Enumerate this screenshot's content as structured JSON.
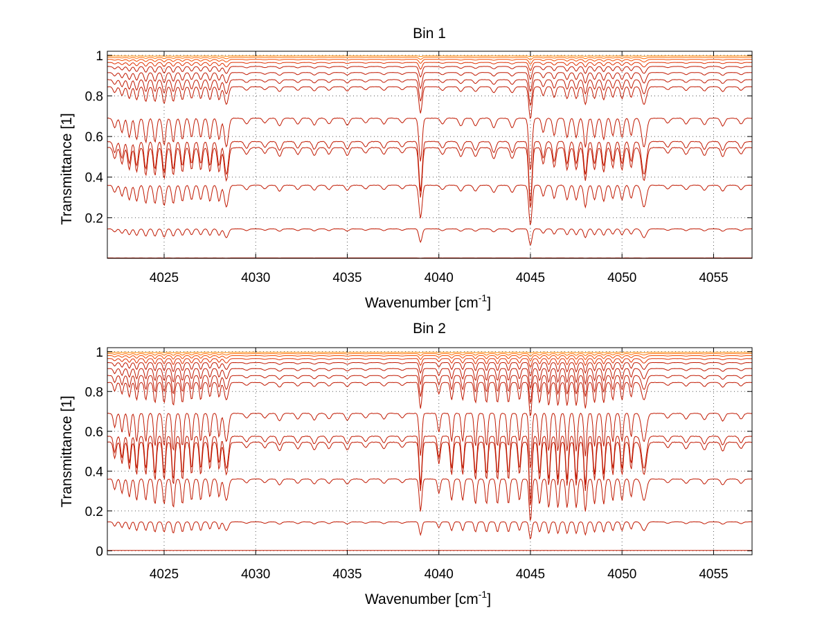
{
  "figure": {
    "background": "#ffffff"
  },
  "chart_data": [
    {
      "type": "line",
      "title": "Bin 1",
      "xlabel": "Wavenumber [cm",
      "xlabel_superscript": "-1",
      "xlabel_close": "]",
      "ylabel": "Transmittance [1]",
      "xlim": [
        4021.9,
        4057.1
      ],
      "ylim": [
        0,
        1.02
      ],
      "grid": true,
      "xticks": [
        4025,
        4030,
        4035,
        4040,
        4045,
        4050,
        4055
      ],
      "xtick_labels": [
        "4025",
        "4030",
        "4035",
        "4040",
        "4045",
        "4050",
        "4055"
      ],
      "yticks": [
        0.2,
        0.4,
        0.6,
        0.8,
        1
      ],
      "ytick_labels": [
        "0.2",
        "0.4",
        "0.6",
        "0.8",
        "1"
      ],
      "line_color": "#c01800",
      "baselines": [
        0.997,
        0.99,
        0.98,
        0.965,
        0.945,
        0.915,
        0.88,
        0.845,
        0.69,
        0.575,
        0.545,
        0.36,
        0.145,
        0.002
      ],
      "absorption_lines": [
        {
          "x": 4022.3,
          "depth": 0.1,
          "width": 0.12
        },
        {
          "x": 4022.7,
          "depth": 0.15,
          "width": 0.12
        },
        {
          "x": 4023.1,
          "depth": 0.2,
          "width": 0.12
        },
        {
          "x": 4023.5,
          "depth": 0.22,
          "width": 0.12
        },
        {
          "x": 4024.0,
          "depth": 0.25,
          "width": 0.12
        },
        {
          "x": 4024.5,
          "depth": 0.25,
          "width": 0.12
        },
        {
          "x": 4025.0,
          "depth": 0.28,
          "width": 0.12
        },
        {
          "x": 4025.5,
          "depth": 0.25,
          "width": 0.12
        },
        {
          "x": 4026.0,
          "depth": 0.22,
          "width": 0.12
        },
        {
          "x": 4026.5,
          "depth": 0.2,
          "width": 0.12
        },
        {
          "x": 4027.0,
          "depth": 0.2,
          "width": 0.12
        },
        {
          "x": 4027.5,
          "depth": 0.22,
          "width": 0.12
        },
        {
          "x": 4028.0,
          "depth": 0.22,
          "width": 0.12
        },
        {
          "x": 4028.4,
          "depth": 0.3,
          "width": 0.15
        },
        {
          "x": 4029.5,
          "depth": 0.06,
          "width": 0.15
        },
        {
          "x": 4030.5,
          "depth": 0.05,
          "width": 0.15
        },
        {
          "x": 4031.3,
          "depth": 0.08,
          "width": 0.15
        },
        {
          "x": 4032.3,
          "depth": 0.06,
          "width": 0.15
        },
        {
          "x": 4033.2,
          "depth": 0.07,
          "width": 0.15
        },
        {
          "x": 4034.0,
          "depth": 0.06,
          "width": 0.15
        },
        {
          "x": 4035.0,
          "depth": 0.07,
          "width": 0.15
        },
        {
          "x": 4036.0,
          "depth": 0.05,
          "width": 0.15
        },
        {
          "x": 4037.0,
          "depth": 0.06,
          "width": 0.15
        },
        {
          "x": 4038.0,
          "depth": 0.05,
          "width": 0.15
        },
        {
          "x": 4039.0,
          "depth": 0.45,
          "width": 0.12
        },
        {
          "x": 4040.2,
          "depth": 0.06,
          "width": 0.15
        },
        {
          "x": 4041.2,
          "depth": 0.08,
          "width": 0.15
        },
        {
          "x": 4042.0,
          "depth": 0.08,
          "width": 0.15
        },
        {
          "x": 4043.0,
          "depth": 0.1,
          "width": 0.15
        },
        {
          "x": 4044.0,
          "depth": 0.1,
          "width": 0.15
        },
        {
          "x": 4045.0,
          "depth": 0.55,
          "width": 0.12
        },
        {
          "x": 4045.7,
          "depth": 0.15,
          "width": 0.12
        },
        {
          "x": 4046.3,
          "depth": 0.18,
          "width": 0.12
        },
        {
          "x": 4047.0,
          "depth": 0.2,
          "width": 0.12
        },
        {
          "x": 4047.5,
          "depth": 0.2,
          "width": 0.12
        },
        {
          "x": 4048.0,
          "depth": 0.3,
          "width": 0.12
        },
        {
          "x": 4048.5,
          "depth": 0.2,
          "width": 0.12
        },
        {
          "x": 4049.0,
          "depth": 0.22,
          "width": 0.12
        },
        {
          "x": 4049.5,
          "depth": 0.18,
          "width": 0.12
        },
        {
          "x": 4050.0,
          "depth": 0.2,
          "width": 0.12
        },
        {
          "x": 4050.5,
          "depth": 0.18,
          "width": 0.12
        },
        {
          "x": 4051.2,
          "depth": 0.3,
          "width": 0.18
        },
        {
          "x": 4052.5,
          "depth": 0.05,
          "width": 0.15
        },
        {
          "x": 4053.5,
          "depth": 0.06,
          "width": 0.15
        },
        {
          "x": 4054.5,
          "depth": 0.07,
          "width": 0.15
        },
        {
          "x": 4055.5,
          "depth": 0.08,
          "width": 0.15
        },
        {
          "x": 4056.5,
          "depth": 0.06,
          "width": 0.15
        }
      ]
    },
    {
      "type": "line",
      "title": "Bin 2",
      "xlabel": "Wavenumber [cm",
      "xlabel_superscript": "-1",
      "xlabel_close": "]",
      "ylabel": "Transmittance [1]",
      "xlim": [
        4021.9,
        4057.1
      ],
      "ylim": [
        -0.02,
        1.02
      ],
      "grid": true,
      "xticks": [
        4025,
        4030,
        4035,
        4040,
        4045,
        4050,
        4055
      ],
      "xtick_labels": [
        "4025",
        "4030",
        "4035",
        "4040",
        "4045",
        "4050",
        "4055"
      ],
      "yticks": [
        0,
        0.2,
        0.4,
        0.6,
        0.8,
        1
      ],
      "ytick_labels": [
        "0",
        "0.2",
        "0.4",
        "0.6",
        "0.8",
        "1"
      ],
      "line_color": "#c01800",
      "baselines": [
        0.997,
        0.99,
        0.98,
        0.965,
        0.945,
        0.915,
        0.88,
        0.845,
        0.69,
        0.575,
        0.545,
        0.36,
        0.145,
        0.002
      ],
      "absorption_lines": [
        {
          "x": 4022.3,
          "depth": 0.15,
          "width": 0.1
        },
        {
          "x": 4022.7,
          "depth": 0.2,
          "width": 0.1
        },
        {
          "x": 4023.1,
          "depth": 0.25,
          "width": 0.1
        },
        {
          "x": 4023.5,
          "depth": 0.3,
          "width": 0.1
        },
        {
          "x": 4024.0,
          "depth": 0.3,
          "width": 0.1
        },
        {
          "x": 4024.5,
          "depth": 0.35,
          "width": 0.1
        },
        {
          "x": 4025.0,
          "depth": 0.35,
          "width": 0.1
        },
        {
          "x": 4025.5,
          "depth": 0.4,
          "width": 0.1
        },
        {
          "x": 4026.0,
          "depth": 0.35,
          "width": 0.1
        },
        {
          "x": 4026.5,
          "depth": 0.3,
          "width": 0.1
        },
        {
          "x": 4027.0,
          "depth": 0.3,
          "width": 0.1
        },
        {
          "x": 4027.5,
          "depth": 0.25,
          "width": 0.1
        },
        {
          "x": 4028.0,
          "depth": 0.25,
          "width": 0.1
        },
        {
          "x": 4028.4,
          "depth": 0.3,
          "width": 0.15
        },
        {
          "x": 4029.5,
          "depth": 0.05,
          "width": 0.15
        },
        {
          "x": 4030.5,
          "depth": 0.05,
          "width": 0.15
        },
        {
          "x": 4031.3,
          "depth": 0.08,
          "width": 0.15
        },
        {
          "x": 4032.3,
          "depth": 0.06,
          "width": 0.15
        },
        {
          "x": 4033.2,
          "depth": 0.07,
          "width": 0.15
        },
        {
          "x": 4034.0,
          "depth": 0.06,
          "width": 0.15
        },
        {
          "x": 4035.0,
          "depth": 0.07,
          "width": 0.15
        },
        {
          "x": 4036.0,
          "depth": 0.05,
          "width": 0.15
        },
        {
          "x": 4037.0,
          "depth": 0.06,
          "width": 0.15
        },
        {
          "x": 4038.0,
          "depth": 0.05,
          "width": 0.15
        },
        {
          "x": 4039.0,
          "depth": 0.45,
          "width": 0.1
        },
        {
          "x": 4040.0,
          "depth": 0.2,
          "width": 0.1
        },
        {
          "x": 4040.7,
          "depth": 0.3,
          "width": 0.1
        },
        {
          "x": 4041.3,
          "depth": 0.3,
          "width": 0.1
        },
        {
          "x": 4042.0,
          "depth": 0.35,
          "width": 0.1
        },
        {
          "x": 4042.6,
          "depth": 0.35,
          "width": 0.1
        },
        {
          "x": 4043.2,
          "depth": 0.35,
          "width": 0.1
        },
        {
          "x": 4043.8,
          "depth": 0.35,
          "width": 0.1
        },
        {
          "x": 4044.4,
          "depth": 0.3,
          "width": 0.1
        },
        {
          "x": 4045.0,
          "depth": 0.6,
          "width": 0.1
        },
        {
          "x": 4045.5,
          "depth": 0.35,
          "width": 0.1
        },
        {
          "x": 4046.0,
          "depth": 0.4,
          "width": 0.1
        },
        {
          "x": 4046.5,
          "depth": 0.4,
          "width": 0.1
        },
        {
          "x": 4047.0,
          "depth": 0.4,
          "width": 0.1
        },
        {
          "x": 4047.5,
          "depth": 0.4,
          "width": 0.1
        },
        {
          "x": 4048.0,
          "depth": 0.45,
          "width": 0.1
        },
        {
          "x": 4048.5,
          "depth": 0.35,
          "width": 0.1
        },
        {
          "x": 4049.0,
          "depth": 0.35,
          "width": 0.1
        },
        {
          "x": 4049.5,
          "depth": 0.3,
          "width": 0.1
        },
        {
          "x": 4050.0,
          "depth": 0.3,
          "width": 0.1
        },
        {
          "x": 4050.5,
          "depth": 0.25,
          "width": 0.1
        },
        {
          "x": 4051.2,
          "depth": 0.3,
          "width": 0.18
        },
        {
          "x": 4052.5,
          "depth": 0.05,
          "width": 0.15
        },
        {
          "x": 4053.5,
          "depth": 0.06,
          "width": 0.15
        },
        {
          "x": 4054.5,
          "depth": 0.07,
          "width": 0.15
        },
        {
          "x": 4055.5,
          "depth": 0.08,
          "width": 0.15
        },
        {
          "x": 4056.5,
          "depth": 0.06,
          "width": 0.15
        }
      ]
    }
  ]
}
